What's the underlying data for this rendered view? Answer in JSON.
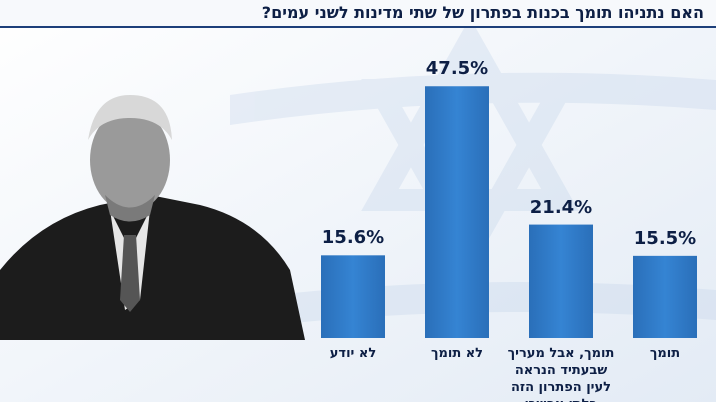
{
  "chart_data": {
    "type": "bar",
    "title": "האם נתניהו תומך בכנות בפתרון של שתי מדינות לשני עמים?",
    "categories": [
      "תומך",
      "תומך, אבל מעריך שבעתיד הנראה לעין הפתרון הזה בלתי אפשרי",
      "לא תומך",
      "לא יודע"
    ],
    "values": [
      15.5,
      21.4,
      47.5,
      15.6
    ],
    "value_labels": [
      "15.5%",
      "21.4%",
      "47.5%",
      "15.6%"
    ],
    "color": "#2f7bc8"
  }
}
